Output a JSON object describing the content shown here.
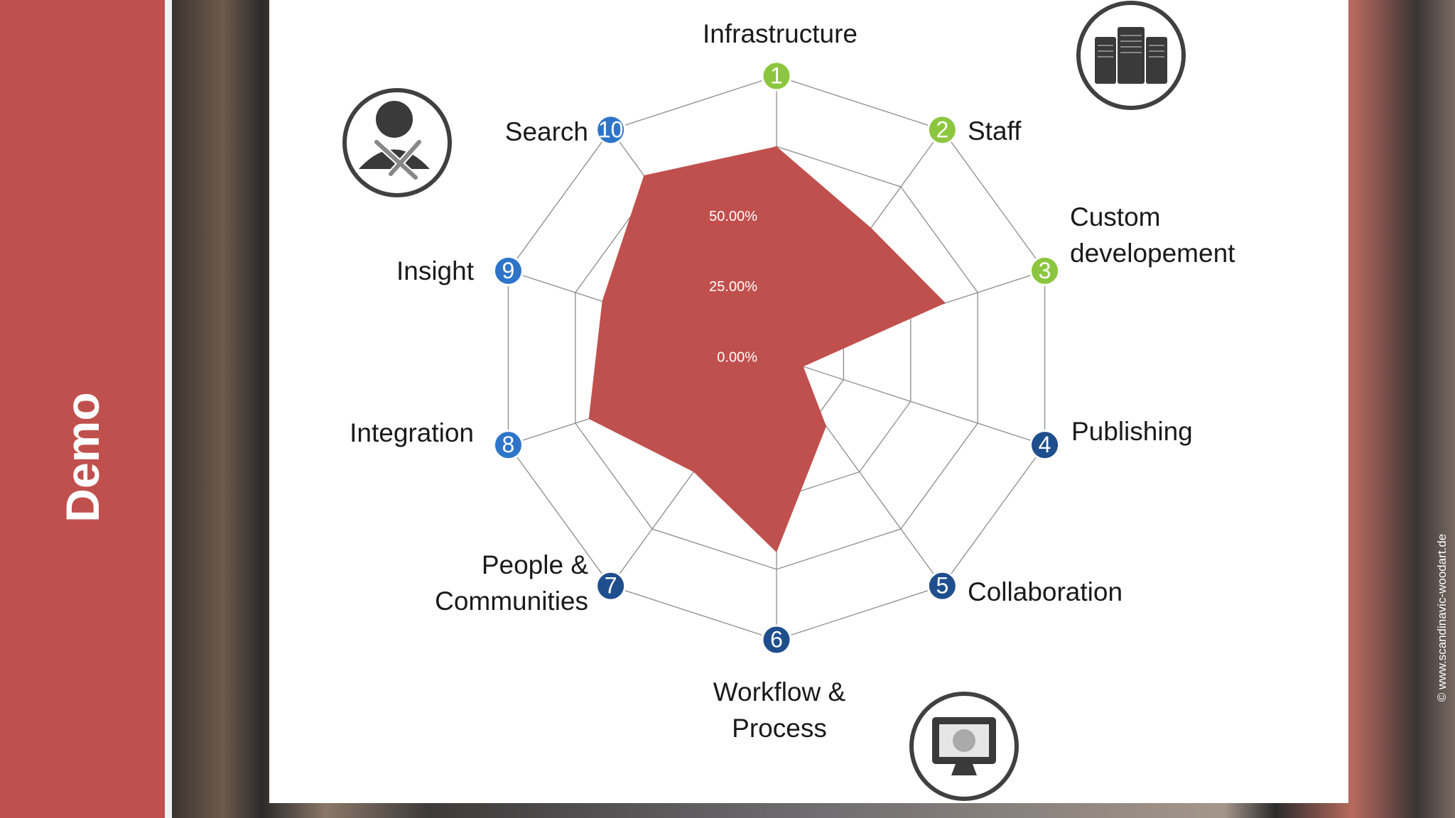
{
  "slide": {
    "title": "Demo",
    "credit": "© www.scandinavic-woodart.de"
  },
  "chart_data": {
    "type": "radar",
    "categories": [
      "Infrastructure",
      "Staff",
      "Custom developement",
      "Publishing",
      "Collaboration",
      "Workflow & Process",
      "People & Communities",
      "Integration",
      "Insight",
      "Search"
    ],
    "axis_numbers": [
      1,
      2,
      3,
      4,
      5,
      6,
      7,
      8,
      9,
      10
    ],
    "marker_colors": [
      "#8cc63f",
      "#8cc63f",
      "#8cc63f",
      "#1f4e8c",
      "#1f4e8c",
      "#1f4e8c",
      "#1f4e8c",
      "#2e75c9",
      "#2e75c9",
      "#2e75c9"
    ],
    "values": [
      75,
      57,
      63,
      10,
      30,
      69,
      50,
      70,
      65,
      80
    ],
    "color": "#c0504d",
    "ylim": [
      0,
      100
    ],
    "yticks": [
      {
        "value": 0,
        "label": "0.00%"
      },
      {
        "value": 25,
        "label": "25.00%"
      },
      {
        "value": 50,
        "label": "50.00%"
      }
    ],
    "grid": true
  }
}
